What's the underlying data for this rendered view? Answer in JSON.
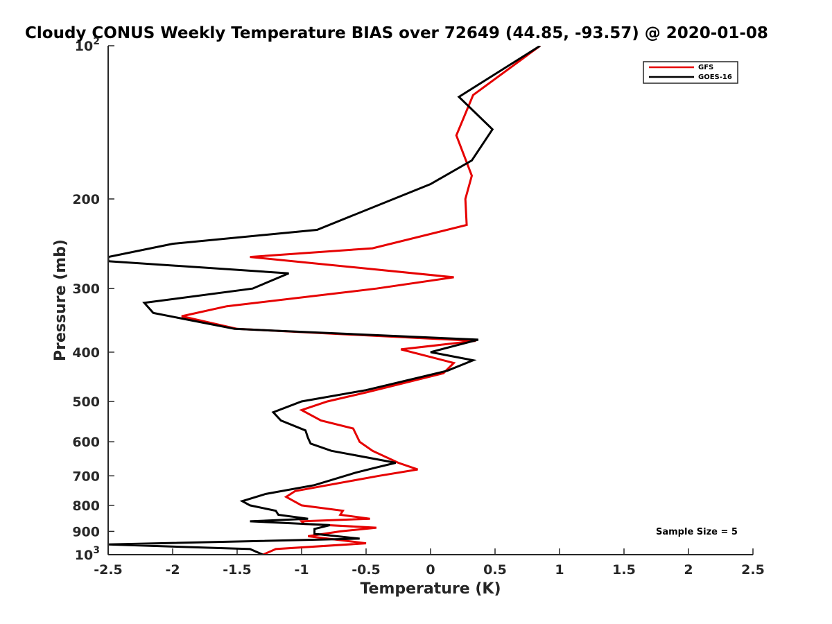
{
  "chart_data": {
    "type": "line",
    "title": "Cloudy CONUS Weekly Temperature BIAS over 72649 (44.85, -93.57) @ 2020-01-08",
    "xlabel": "Temperature (K)",
    "ylabel": "Pressure (mb)",
    "xlim": [
      -2.5,
      2.5
    ],
    "ylim": [
      100,
      1000
    ],
    "yscale": "log",
    "y_reversed": true,
    "grid": false,
    "legend_position": "top-right",
    "x_ticks": [
      -2.5,
      -2,
      -1.5,
      -1,
      -0.5,
      0,
      0.5,
      1,
      1.5,
      2,
      2.5
    ],
    "x_tick_labels": [
      "-2.5",
      "-2",
      "-1.5",
      "-1",
      "-0.5",
      "0",
      "0.5",
      "1",
      "1.5",
      "2",
      "2.5"
    ],
    "y_ticks": [
      100,
      200,
      300,
      400,
      500,
      600,
      700,
      800,
      900,
      1000
    ],
    "y_tick_labels": [
      {
        "base": "10",
        "exp": "2"
      },
      {
        "base": "200"
      },
      {
        "base": "300"
      },
      {
        "base": "400"
      },
      {
        "base": "500"
      },
      {
        "base": "600"
      },
      {
        "base": "700"
      },
      {
        "base": "800"
      },
      {
        "base": "900"
      },
      {
        "base": "10",
        "exp": "3"
      }
    ],
    "annotation": "Sample Size = 5",
    "series": [
      {
        "name": "GFS",
        "color": "#e60000",
        "points": [
          [
            0.85,
            100
          ],
          [
            0.33,
            125
          ],
          [
            0.2,
            150
          ],
          [
            0.32,
            180
          ],
          [
            0.27,
            200
          ],
          [
            0.28,
            225
          ],
          [
            -0.45,
            250
          ],
          [
            -1.4,
            260
          ],
          [
            0.18,
            285
          ],
          [
            -0.42,
            300
          ],
          [
            -1.58,
            325
          ],
          [
            -1.93,
            340
          ],
          [
            -1.5,
            360
          ],
          [
            0.35,
            380
          ],
          [
            -0.23,
            395
          ],
          [
            0.18,
            420
          ],
          [
            0.1,
            440
          ],
          [
            -0.5,
            480
          ],
          [
            -0.8,
            500
          ],
          [
            -1.0,
            520
          ],
          [
            -0.85,
            545
          ],
          [
            -0.6,
            565
          ],
          [
            -0.55,
            600
          ],
          [
            -0.45,
            625
          ],
          [
            -0.25,
            660
          ],
          [
            -0.1,
            680
          ],
          [
            -0.4,
            700
          ],
          [
            -1.05,
            750
          ],
          [
            -1.12,
            770
          ],
          [
            -1.0,
            800
          ],
          [
            -0.68,
            820
          ],
          [
            -0.7,
            835
          ],
          [
            -0.47,
            850
          ],
          [
            -1.0,
            860
          ],
          [
            -0.98,
            870
          ],
          [
            -0.42,
            885
          ],
          [
            -0.7,
            900
          ],
          [
            -0.95,
            920
          ],
          [
            -0.5,
            950
          ],
          [
            -1.2,
            975
          ],
          [
            -1.3,
            1000
          ]
        ]
      },
      {
        "name": "GOES-16",
        "color": "#000000",
        "points": [
          [
            0.85,
            100
          ],
          [
            0.22,
            126
          ],
          [
            0.48,
            146
          ],
          [
            0.32,
            168
          ],
          [
            0.0,
            187
          ],
          [
            -0.88,
            230
          ],
          [
            -2.0,
            245
          ],
          [
            -2.5,
            260
          ],
          [
            -2.5,
            265
          ],
          [
            -1.1,
            280
          ],
          [
            -1.38,
            300
          ],
          [
            -2.22,
            320
          ],
          [
            -2.15,
            335
          ],
          [
            -1.52,
            360
          ],
          [
            0.37,
            378
          ],
          [
            0.0,
            400
          ],
          [
            0.33,
            415
          ],
          [
            0.13,
            435
          ],
          [
            -0.5,
            475
          ],
          [
            -1.0,
            500
          ],
          [
            -1.22,
            525
          ],
          [
            -1.16,
            545
          ],
          [
            -0.97,
            570
          ],
          [
            -0.95,
            590
          ],
          [
            -0.93,
            605
          ],
          [
            -0.77,
            625
          ],
          [
            -0.27,
            660
          ],
          [
            -0.43,
            675
          ],
          [
            -0.58,
            690
          ],
          [
            -0.9,
            730
          ],
          [
            -1.28,
            760
          ],
          [
            -1.46,
            785
          ],
          [
            -1.4,
            800
          ],
          [
            -1.2,
            820
          ],
          [
            -1.18,
            835
          ],
          [
            -0.95,
            850
          ],
          [
            -1.4,
            860
          ],
          [
            -0.78,
            875
          ],
          [
            -0.9,
            890
          ],
          [
            -0.9,
            910
          ],
          [
            -0.55,
            930
          ],
          [
            -2.5,
            955
          ],
          [
            -1.4,
            975
          ],
          [
            -1.3,
            1000
          ]
        ]
      }
    ]
  }
}
